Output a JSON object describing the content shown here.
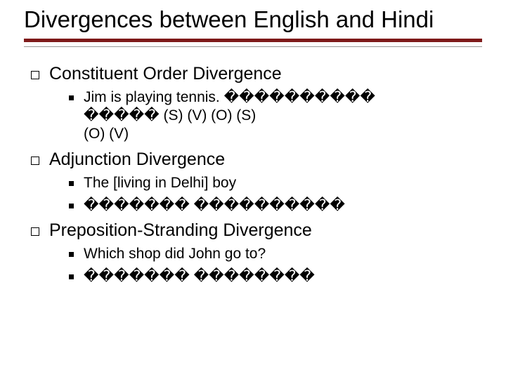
{
  "title": "Divergences between English and Hindi",
  "colors": {
    "accent_bar": "#7f1a1a",
    "accent_bar_bottom": "#999999",
    "text": "#000000",
    "background": "#ffffff"
  },
  "typography": {
    "title_fontsize": 33,
    "lvl1_fontsize": 25,
    "lvl2_fontsize": 21,
    "font_family": "Verdana"
  },
  "sections": [
    {
      "heading": "Constituent Order Divergence",
      "items": [
        {
          "text_line1": "Jim is playing tennis.            ����������",
          "text_line2": "�����       (S)       (V)          (O)                 (S)",
          "text_line3": "(O)      (V)"
        }
      ]
    },
    {
      "heading": "Adjunction Divergence",
      "items": [
        {
          "text_line1": "The [living in Delhi] boy"
        },
        {
          "text_line1": "������� ����������"
        }
      ]
    },
    {
      "heading": "Preposition-Stranding Divergence",
      "items": [
        {
          "text_line1": "Which shop did John go to?"
        },
        {
          "text_line1": "������� ��������"
        }
      ]
    }
  ]
}
